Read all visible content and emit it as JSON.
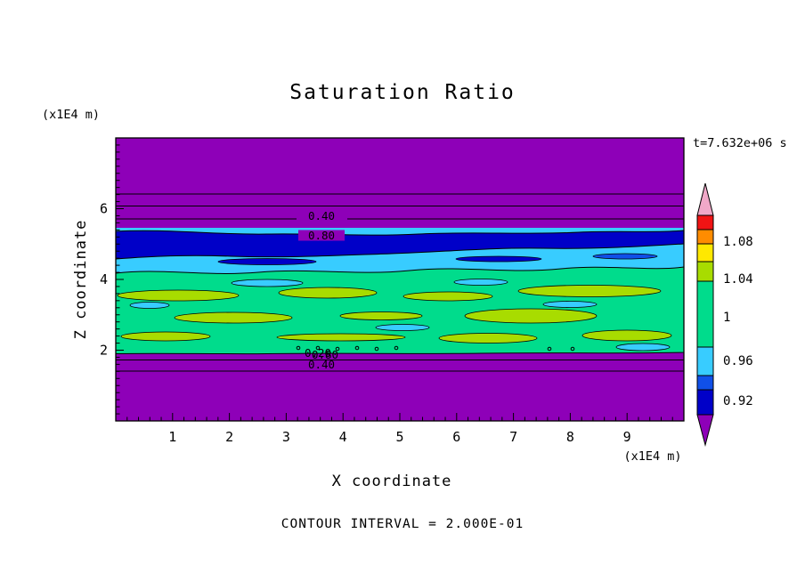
{
  "title": "Saturation Ratio",
  "timestamp": "t=7.632e+06 s",
  "footer": "CONTOUR INTERVAL = 2.000E-01",
  "axes": {
    "x": {
      "label": "X coordinate",
      "units": "(x1E4 m)",
      "ticks": [
        "1",
        "2",
        "3",
        "4",
        "5",
        "6",
        "7",
        "8",
        "9"
      ]
    },
    "y": {
      "label": "Z coordinate",
      "units": "(x1E4 m)",
      "ticks": [
        "2",
        "4",
        "6"
      ]
    }
  },
  "contour_labels": {
    "upper": [
      "0.40",
      "0.80"
    ],
    "lower": [
      "0.20",
      "0.80",
      "0.40"
    ]
  },
  "colors": {
    "purple": "#8E00B8",
    "navy": "#0000C8",
    "blue": "#1050E8",
    "cyan": "#38CCFF",
    "green": "#00DC8C",
    "chartreuse": "#A8DC00",
    "yellow": "#FFE800",
    "orange": "#FF8C00",
    "red": "#F01414",
    "pink": "#F0A8C8"
  },
  "colorbar": {
    "labels": [
      "1.08",
      "1.04",
      "1",
      "0.96",
      "0.92"
    ],
    "body_colors": [
      "red",
      "orange",
      "yellow",
      "chartreuse",
      "green",
      "cyan",
      "blue",
      "navy"
    ],
    "arrow_top_color": "pink",
    "arrow_bottom_color": "purple"
  },
  "chart_data": {
    "type": "heatmap",
    "title": "Saturation Ratio",
    "xlabel": "X coordinate",
    "ylabel": "Z coordinate",
    "x_units": "x1E4 m",
    "y_units": "x1E4 m",
    "time_annotation": "t=7.632e+06 s",
    "contour_interval": 0.2,
    "xlim": [
      0,
      10
    ],
    "ylim": [
      0,
      8
    ],
    "x_ticks": [
      1,
      2,
      3,
      4,
      5,
      6,
      7,
      8,
      9
    ],
    "y_ticks": [
      2,
      4,
      6
    ],
    "colorbar_labeled_levels": [
      1.08,
      1.04,
      1,
      0.96,
      0.92
    ],
    "colorbar_colors_top_to_bottom": [
      "pink",
      "red",
      "orange",
      "yellow",
      "chartreuse",
      "green",
      "cyan",
      "blue",
      "navy",
      "purple"
    ],
    "labeled_contour_values": [
      0.2,
      0.4,
      0.8
    ],
    "grid": false,
    "legend_position": "right-colorbar",
    "field_bands_top_to_bottom": [
      {
        "z_range": [
          5.6,
          8.0
        ],
        "saturation": "< 0.4",
        "color": "purple"
      },
      {
        "z_range": [
          5.3,
          5.6
        ],
        "saturation": "0.4 - 0.8 (labeled contours 0.40, 0.80)",
        "color": "purple"
      },
      {
        "z_range": [
          4.9,
          5.3
        ],
        "saturation": "~0.92",
        "color": "navy"
      },
      {
        "z_range": [
          4.5,
          4.9
        ],
        "saturation": "~0.96",
        "color": "cyan"
      },
      {
        "z_range": [
          2.0,
          4.5
        ],
        "saturation": "~1.0 with elongated lenses up to ~1.04",
        "color": "green with chartreuse lenses"
      },
      {
        "z_range": [
          0.0,
          2.0
        ],
        "saturation": "< 0.4 (labeled contours 0.20, 0.80, 0.40)",
        "color": "purple"
      }
    ]
  }
}
